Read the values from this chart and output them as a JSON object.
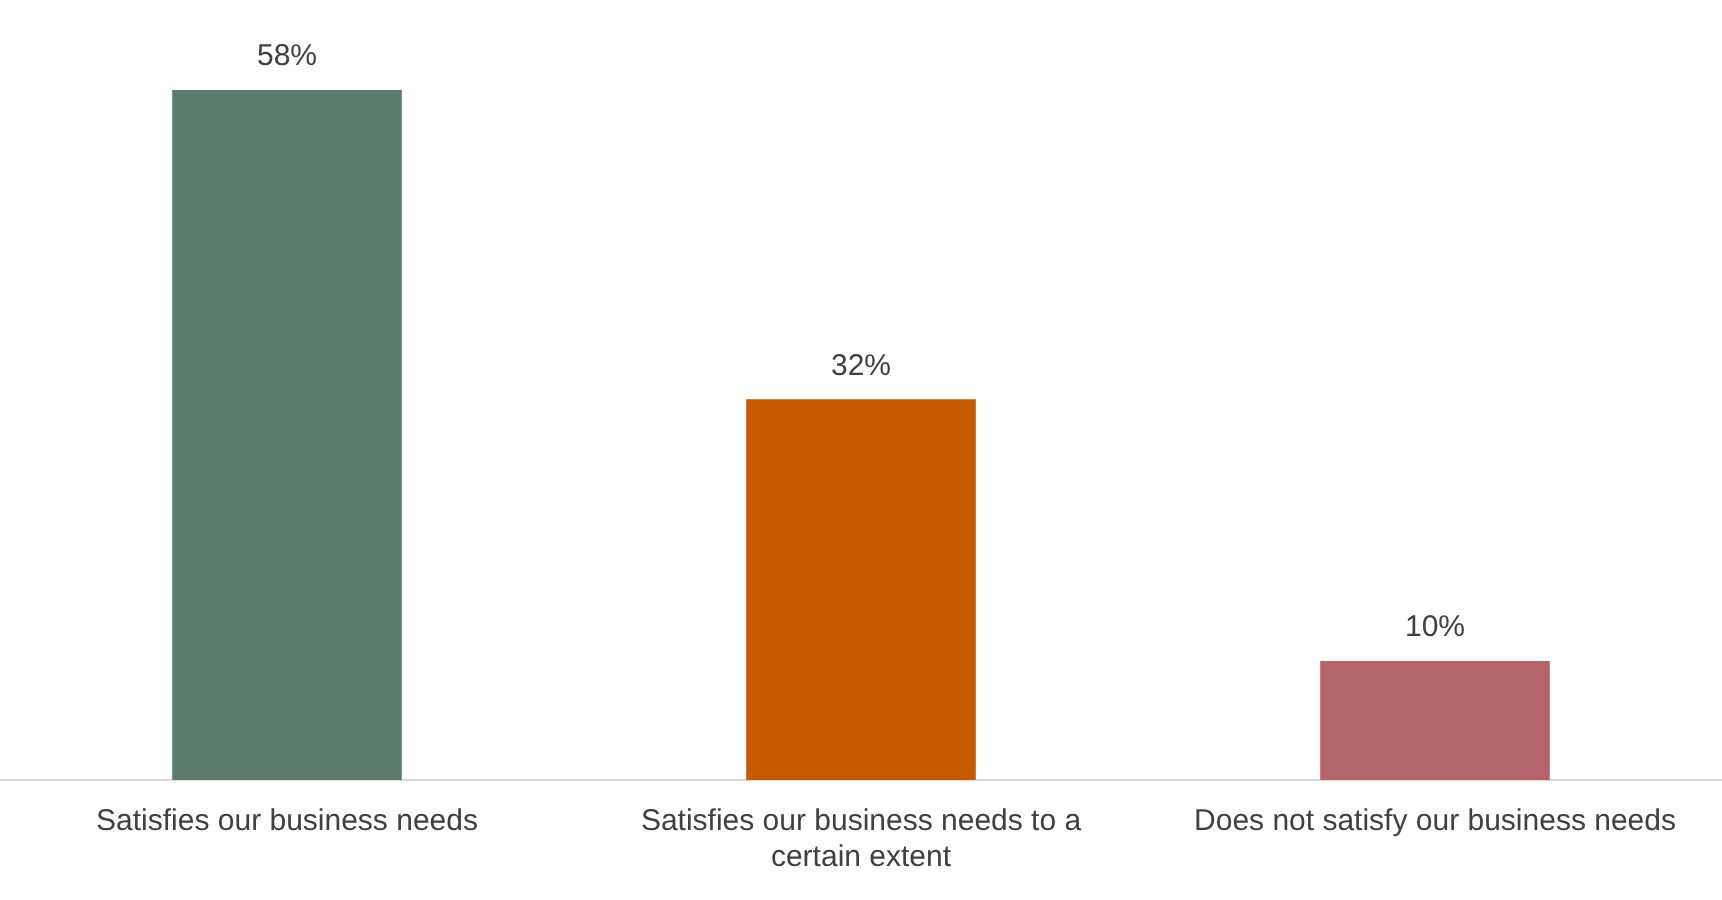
{
  "chart_data": {
    "type": "bar",
    "categories": [
      "Satisfies our business needs",
      "Satisfies our business needs to a certain extent",
      "Does not satisfy our business needs"
    ],
    "values": [
      58,
      32,
      10
    ],
    "colors": [
      "#5b7b6c",
      "#c55a00",
      "#b4636b"
    ],
    "value_labels": [
      "58%",
      "32%",
      "10%"
    ],
    "grid": false,
    "legend": false
  }
}
